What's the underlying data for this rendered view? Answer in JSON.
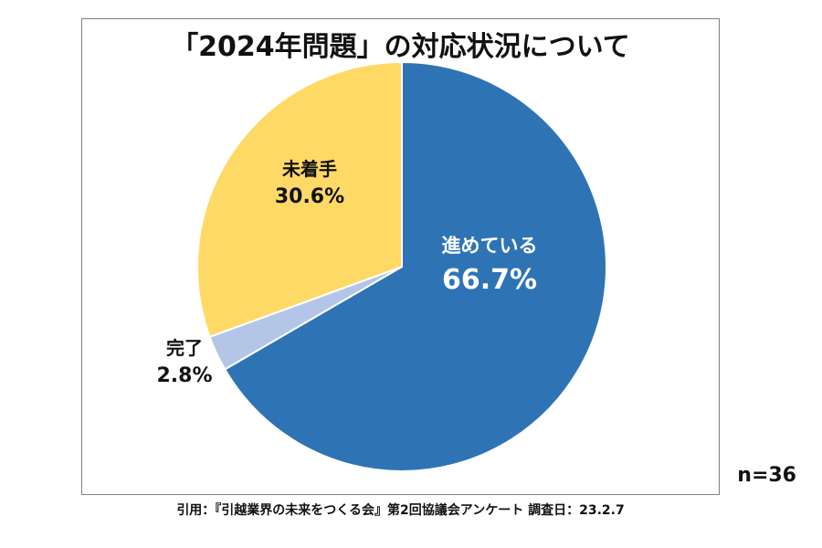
{
  "chart_data": {
    "type": "pie",
    "title": "「2024年問題」の対応状況について",
    "series": [
      {
        "name": "進めている",
        "value": 66.7,
        "label": "66.7%",
        "color": "#2e74b5"
      },
      {
        "name": "完了",
        "value": 2.8,
        "label": "2.8%",
        "color": "#b4c6e7"
      },
      {
        "name": "未着手",
        "value": 30.6,
        "label": "30.6%",
        "color": "#ffd966"
      }
    ],
    "start_angle_deg": 0,
    "direction": "clockwise",
    "n_label": "n=36",
    "source": "引用：『引越業界の未来をつくる会』第2回協議会アンケート 調査日：23.2.7"
  }
}
